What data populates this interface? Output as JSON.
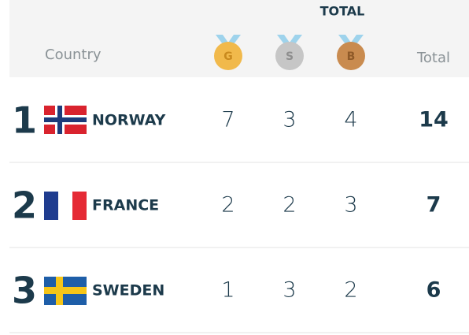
{
  "header": {
    "title": "TOTAL",
    "country": "Country",
    "gold": "G",
    "silver": "S",
    "bronze": "B",
    "total": "Total"
  },
  "table": {
    "rows": [
      {
        "rank": 1,
        "country": "NORWAY",
        "gold": 7,
        "silver": 3,
        "bronze": 4,
        "total": 14
      },
      {
        "rank": 2,
        "country": "FRANCE",
        "gold": 2,
        "silver": 2,
        "bronze": 3,
        "total": 7
      },
      {
        "rank": 3,
        "country": "SWEDEN",
        "gold": 1,
        "silver": 3,
        "bronze": 2,
        "total": 6
      }
    ]
  }
}
